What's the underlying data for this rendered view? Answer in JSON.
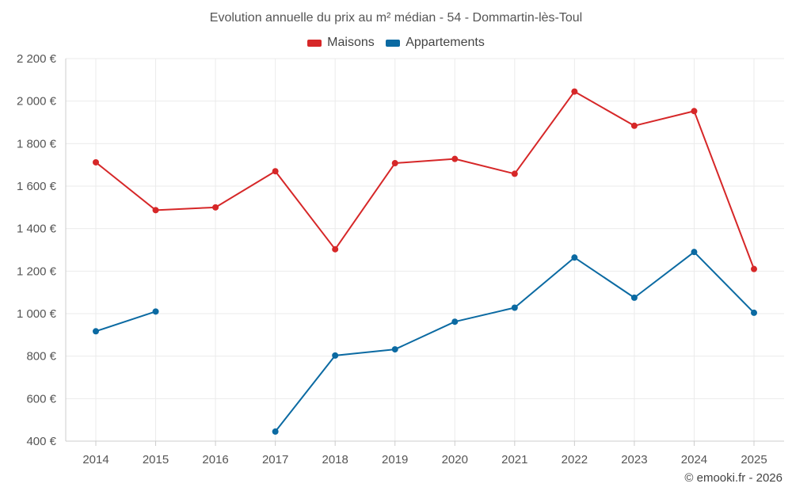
{
  "chart_data": {
    "type": "line",
    "title": "Evolution annuelle du prix au m² médian - 54 - Dommartin-lès-Toul",
    "x": [
      "2014",
      "2015",
      "2016",
      "2017",
      "2018",
      "2019",
      "2020",
      "2021",
      "2022",
      "2023",
      "2024",
      "2025"
    ],
    "y_ticks": [
      "400 €",
      "600 €",
      "800 €",
      "1 000 €",
      "1 200 €",
      "1 400 €",
      "1 600 €",
      "1 800 €",
      "2 000 €",
      "2 200 €"
    ],
    "ylim": [
      400,
      2200
    ],
    "grid": true,
    "legend_position": "top-center",
    "series": [
      {
        "name": "Maisons",
        "color": "#d62728",
        "values": [
          1712,
          1487,
          1500,
          1670,
          1303,
          1708,
          1728,
          1658,
          2045,
          1884,
          1953,
          1210
        ]
      },
      {
        "name": "Appartements",
        "color": "#0b6aa2",
        "values": [
          917,
          1010,
          null,
          445,
          803,
          832,
          962,
          1028,
          1264,
          1075,
          1290,
          1004
        ]
      }
    ]
  },
  "copyright": "© emooki.fr - 2026"
}
